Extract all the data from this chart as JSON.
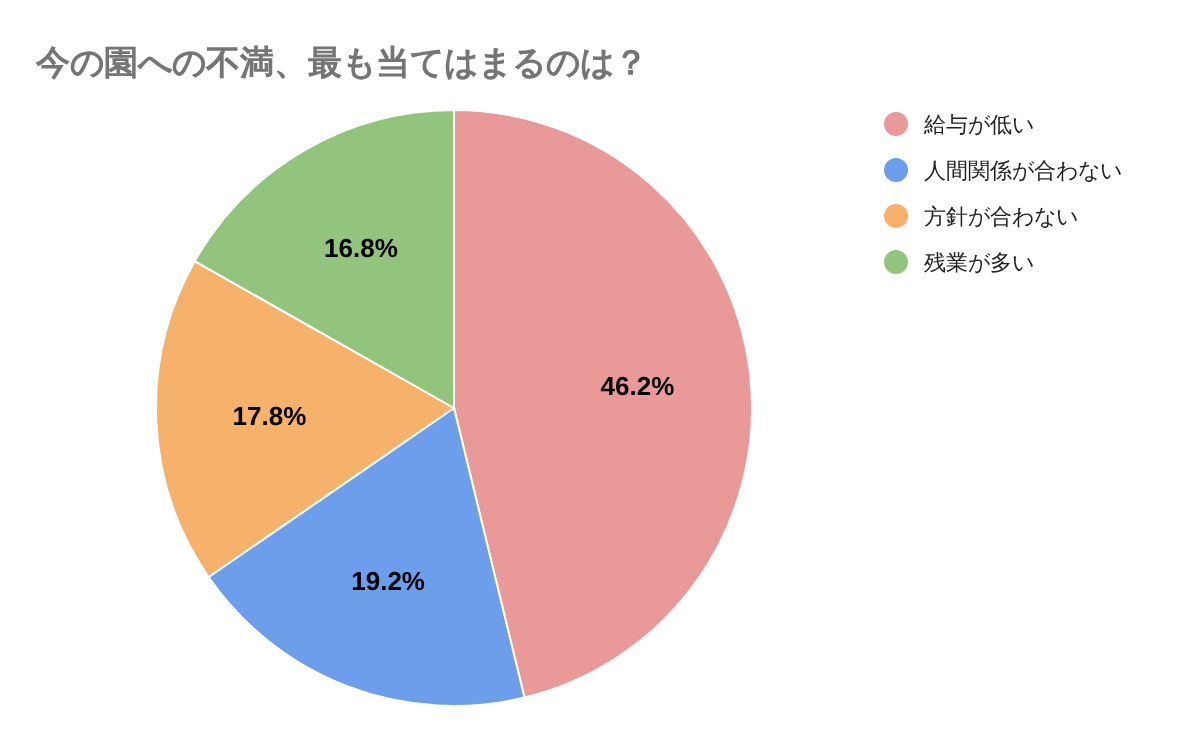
{
  "chart_data": {
    "type": "pie",
    "title": "今の園への不満、最も当てはまるのは？",
    "categories": [
      "給与が低い",
      "人間関係が合わない",
      "方針が合わない",
      "残業が多い"
    ],
    "values": [
      46.2,
      19.2,
      17.8,
      16.8
    ],
    "value_labels": [
      "46.2%",
      "19.2%",
      "17.8%",
      "16.8%"
    ],
    "colors": [
      "#ea9999",
      "#6d9eeb",
      "#f6b26b",
      "#93c47d"
    ],
    "legend": "top right"
  }
}
